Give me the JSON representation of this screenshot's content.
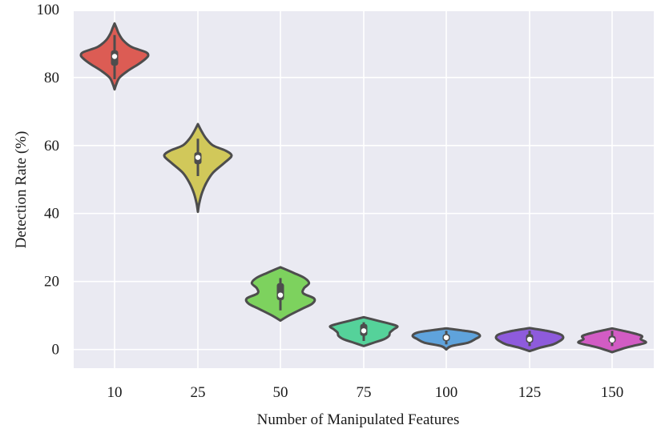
{
  "chart_data": {
    "type": "violin",
    "title": "",
    "xlabel": "Number of Manipulated Features",
    "ylabel": "Detection Rate (%)",
    "categories": [
      "10",
      "25",
      "50",
      "75",
      "100",
      "125",
      "150"
    ],
    "yticks": [
      0,
      20,
      40,
      60,
      80,
      100
    ],
    "ylim": [
      -5.5,
      99.5
    ],
    "grid": true,
    "violins": [
      {
        "category": "10",
        "color": "#dc5c54",
        "min": 76.5,
        "max": 95.9,
        "q1": 83.5,
        "median": 86.2,
        "q3": 88.0,
        "whisker_low": 79.5,
        "whisker_high": 92.5,
        "profile": [
          [
            76.5,
            0
          ],
          [
            78,
            0.05
          ],
          [
            80,
            0.15
          ],
          [
            82,
            0.4
          ],
          [
            84,
            0.72
          ],
          [
            85.5,
            0.92
          ],
          [
            86.5,
            1
          ],
          [
            87.5,
            0.92
          ],
          [
            89,
            0.5
          ],
          [
            91,
            0.25
          ],
          [
            93,
            0.12
          ],
          [
            94.5,
            0.06
          ],
          [
            95.9,
            0
          ]
        ]
      },
      {
        "category": "25",
        "color": "#d1c85a",
        "min": 40.5,
        "max": 66.3,
        "q1": 54.5,
        "median": 56.5,
        "q3": 58.0,
        "whisker_low": 51.0,
        "whisker_high": 62.0,
        "profile": [
          [
            40.5,
            0
          ],
          [
            43,
            0.04
          ],
          [
            46,
            0.12
          ],
          [
            49,
            0.25
          ],
          [
            52,
            0.45
          ],
          [
            55,
            0.8
          ],
          [
            57,
            1
          ],
          [
            58.5,
            0.82
          ],
          [
            60,
            0.45
          ],
          [
            62,
            0.25
          ],
          [
            64,
            0.12
          ],
          [
            66.3,
            0
          ]
        ]
      },
      {
        "category": "50",
        "color": "#7dd25e",
        "min": 8.5,
        "max": 24.2,
        "q1": 14.5,
        "median": 16.0,
        "q3": 19.5,
        "whisker_low": 11.5,
        "whisker_high": 21.0,
        "profile": [
          [
            8.5,
            0
          ],
          [
            10,
            0.25
          ],
          [
            12,
            0.65
          ],
          [
            13.5,
            0.95
          ],
          [
            15,
            1
          ],
          [
            16.5,
            0.68
          ],
          [
            18,
            0.7
          ],
          [
            19.5,
            0.85
          ],
          [
            21,
            0.72
          ],
          [
            22.5,
            0.4
          ],
          [
            24.2,
            0
          ]
        ]
      },
      {
        "category": "75",
        "color": "#55d29a",
        "min": 1.0,
        "max": 9.5,
        "q1": 4.0,
        "median": 5.5,
        "q3": 7.5,
        "whisker_low": 2.5,
        "whisker_high": 8.0,
        "profile": [
          [
            1.0,
            0
          ],
          [
            2,
            0.3
          ],
          [
            3,
            0.6
          ],
          [
            4,
            0.75
          ],
          [
            5,
            0.78
          ],
          [
            6,
            0.9
          ],
          [
            6.8,
            1
          ],
          [
            7.5,
            0.8
          ],
          [
            8.5,
            0.4
          ],
          [
            9.5,
            0
          ]
        ]
      },
      {
        "category": "100",
        "color": "#5fa3dc",
        "min": 0.0,
        "max": 6.2,
        "q1": 2.5,
        "median": 3.5,
        "q3": 4.5,
        "whisker_low": 1.5,
        "whisker_high": 5.5,
        "profile": [
          [
            0.0,
            0
          ],
          [
            1,
            0.15
          ],
          [
            2,
            0.65
          ],
          [
            3,
            0.85
          ],
          [
            4,
            1
          ],
          [
            5,
            0.85
          ],
          [
            5.7,
            0.4
          ],
          [
            6.2,
            0
          ]
        ]
      },
      {
        "category": "125",
        "color": "#8e5bdc",
        "min": -0.5,
        "max": 6.3,
        "q1": 2.0,
        "median": 3.0,
        "q3": 4.5,
        "whisker_low": 1.0,
        "whisker_high": 5.5,
        "profile": [
          [
            -0.5,
            0
          ],
          [
            0.5,
            0.3
          ],
          [
            1.5,
            0.7
          ],
          [
            2.5,
            0.9
          ],
          [
            3.5,
            1
          ],
          [
            4.5,
            0.9
          ],
          [
            5.5,
            0.5
          ],
          [
            6.3,
            0
          ]
        ]
      },
      {
        "category": "150",
        "color": "#d25cc4",
        "min": -0.8,
        "max": 6.2,
        "q1": 2.0,
        "median": 2.8,
        "q3": 4.0,
        "whisker_low": 1.0,
        "whisker_high": 5.5,
        "profile": [
          [
            -0.8,
            0
          ],
          [
            0.2,
            0.3
          ],
          [
            1,
            0.6
          ],
          [
            2,
            1
          ],
          [
            3,
            0.85
          ],
          [
            4,
            0.88
          ],
          [
            5,
            0.55
          ],
          [
            6.2,
            0
          ]
        ]
      }
    ]
  }
}
